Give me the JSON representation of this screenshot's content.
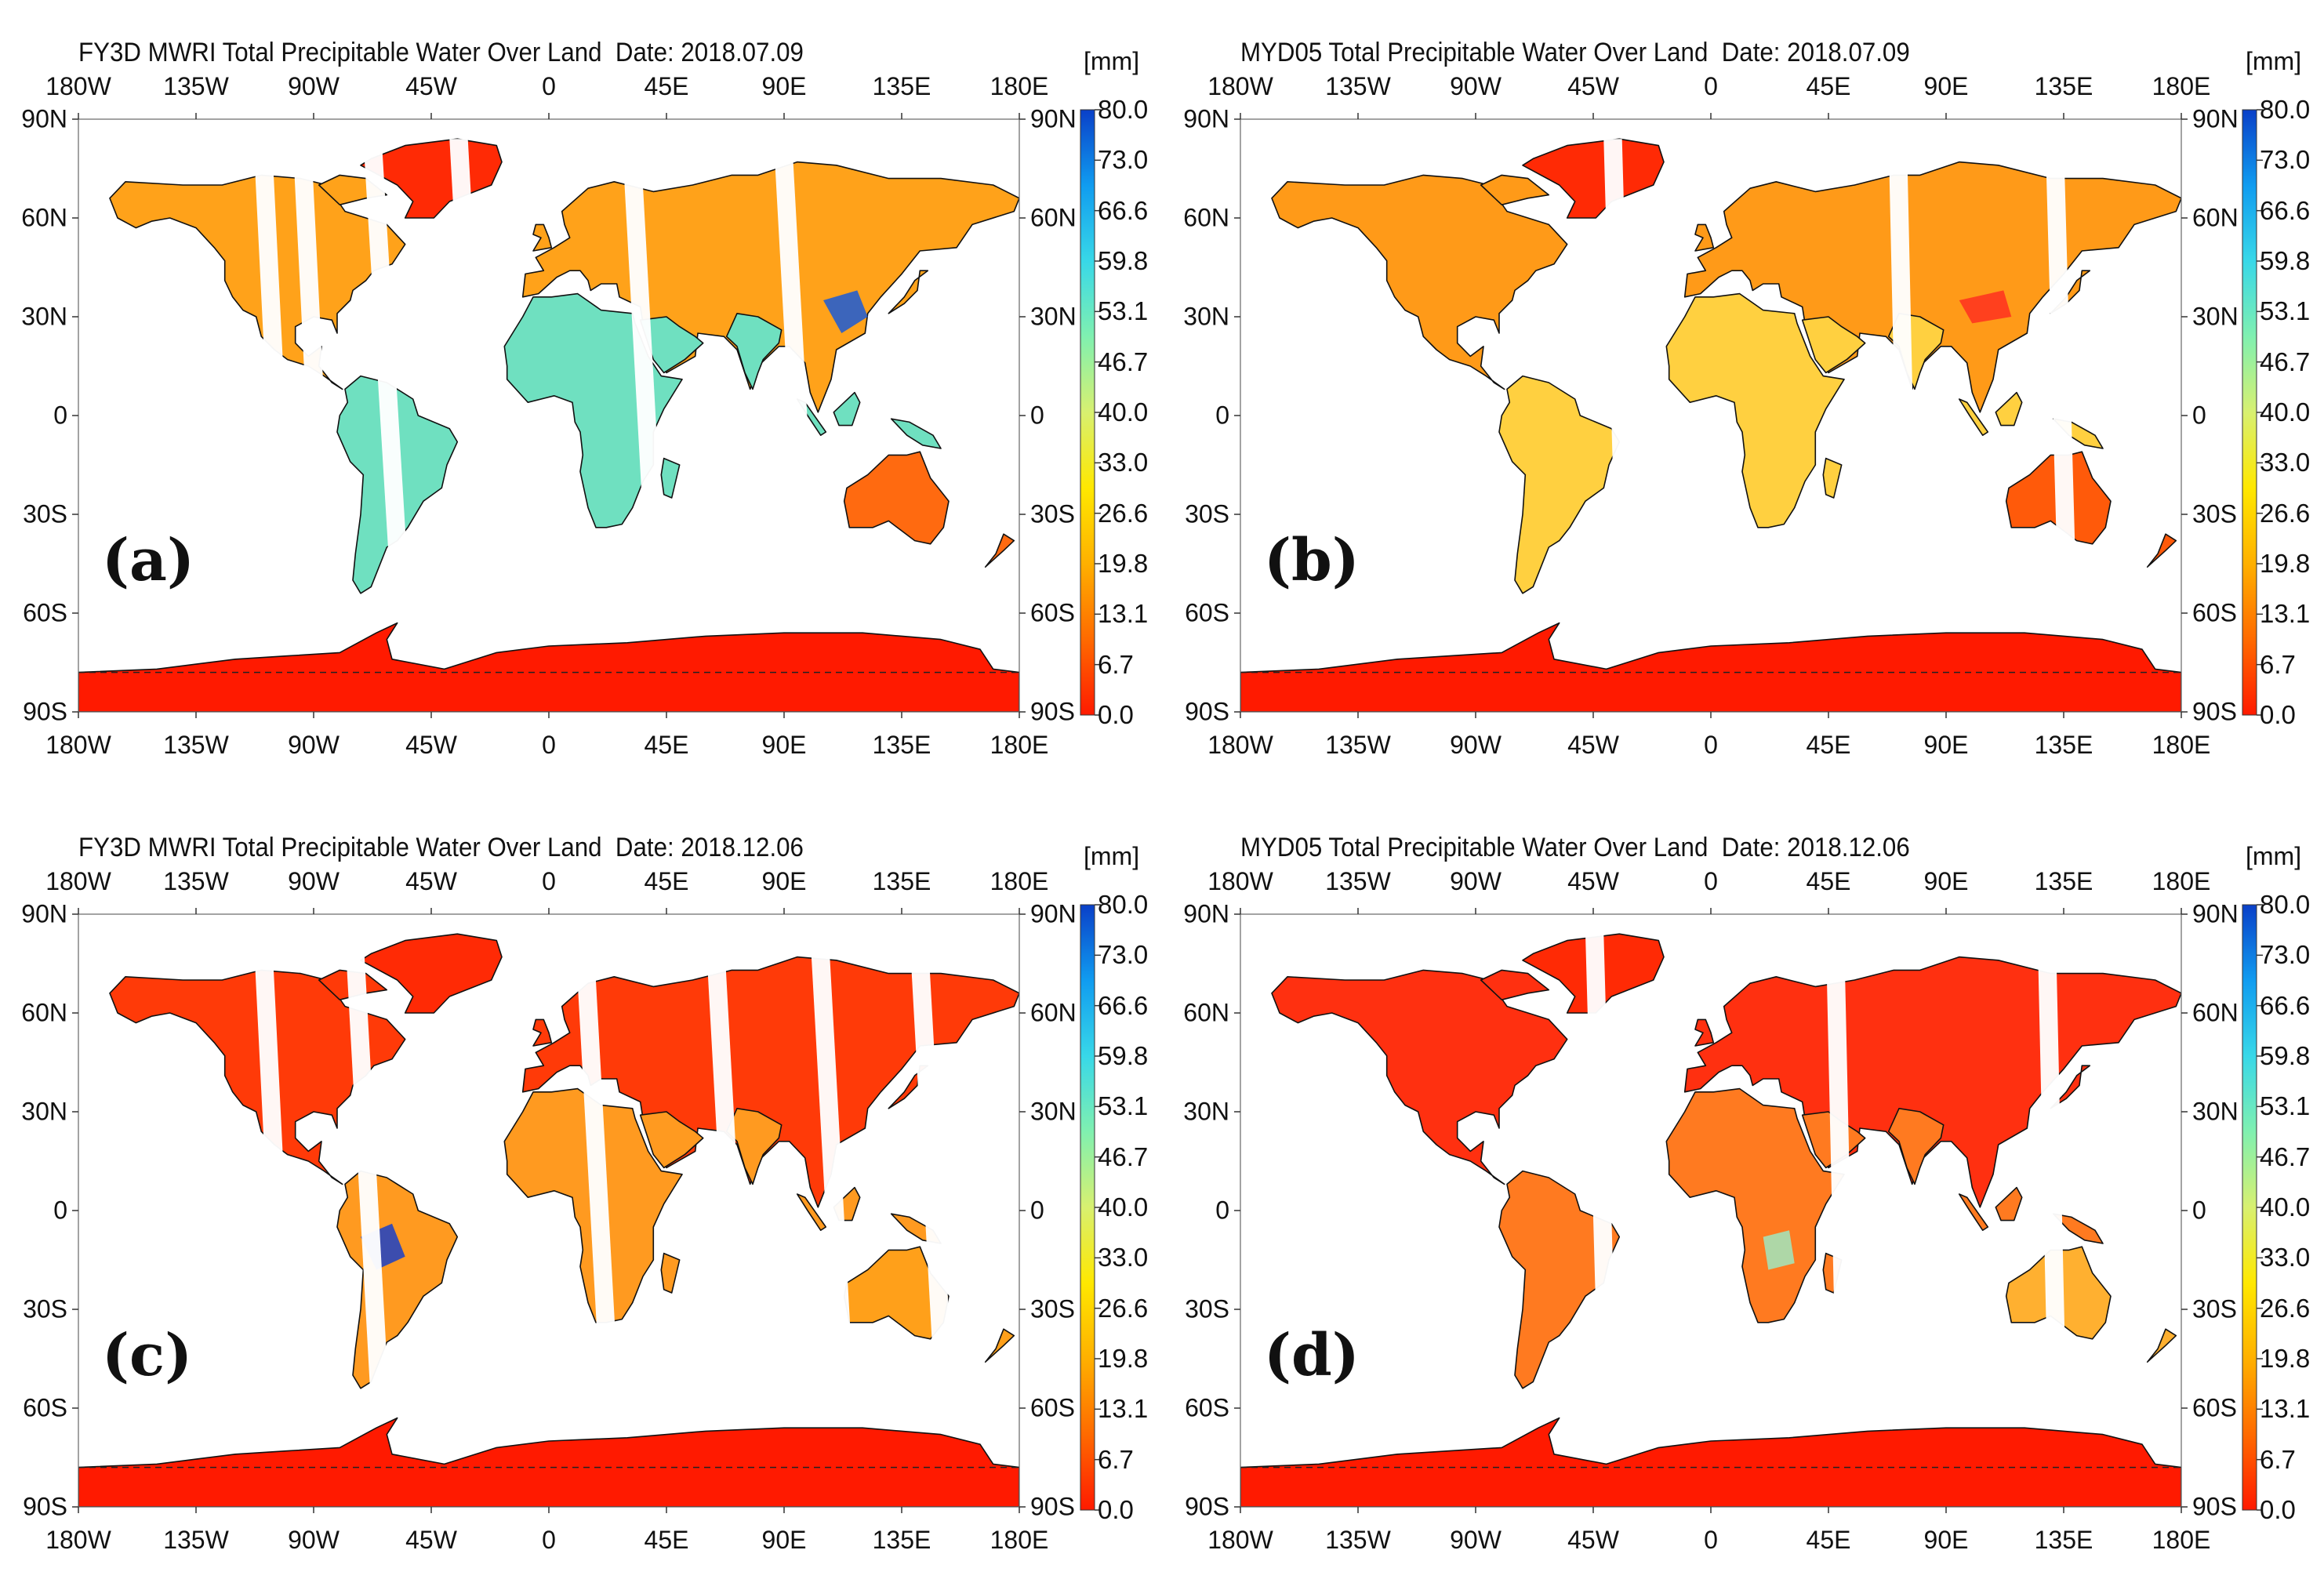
{
  "colors": {
    "colorbar_stops": [
      "#ff1a00",
      "#ff6a00",
      "#ffb000",
      "#ffe800",
      "#d8f070",
      "#80f0b0",
      "#38d8e8",
      "#109cf0",
      "#0a40c8"
    ],
    "coastline": "#111111",
    "land_edge": "#d0d0d0"
  },
  "colorbar": {
    "unit": "[mm]",
    "labels": [
      "80.0",
      "73.0",
      "66.6",
      "59.8",
      "53.1",
      "46.7",
      "40.0",
      "33.0",
      "26.6",
      "19.8",
      "13.1",
      "6.7",
      "0.0"
    ]
  },
  "axes": {
    "lon_labels": [
      "180W",
      "135W",
      "90W",
      "45W",
      "0",
      "45E",
      "90E",
      "135E",
      "180E"
    ],
    "lat_labels": [
      "90N",
      "60N",
      "30N",
      "0",
      "30S",
      "60S",
      "90S"
    ]
  },
  "panels": [
    {
      "id": "a",
      "letter": "(a)",
      "title": "FY3D MWRI Total Precipitable Water Over Land  Date: 2018.07.09",
      "product": "FY3D MWRI",
      "date": "2018.07.09",
      "palette": {
        "north": "#ffa21a",
        "tropics": "#6fe0c0",
        "south": "#ff6a10",
        "antarctica": "#ff1a00",
        "greenland": "#ff2a05",
        "highlight": "#1a5ad8"
      }
    },
    {
      "id": "b",
      "letter": "(b)",
      "title": "MYD05 Total Precipitable Water Over Land  Date: 2018.07.09",
      "product": "MYD05",
      "date": "2018.07.09",
      "palette": {
        "north": "#ff9a18",
        "tropics": "#ffd040",
        "south": "#ff5a0a",
        "antarctica": "#ff1a00",
        "greenland": "#ff2a05",
        "highlight": "#ff3020"
      }
    },
    {
      "id": "c",
      "letter": "(c)",
      "title": "FY3D MWRI Total Precipitable Water Over Land  Date: 2018.12.06",
      "product": "FY3D MWRI",
      "date": "2018.12.06",
      "palette": {
        "north": "#ff3a08",
        "tropics": "#ff9a20",
        "south": "#ffa01a",
        "antarctica": "#ff1a00",
        "greenland": "#ff2a05",
        "highlight": "#1a40c8"
      }
    },
    {
      "id": "d",
      "letter": "(d)",
      "title": "MYD05 Total Precipitable Water Over Land  Date: 2018.12.06",
      "product": "MYD05",
      "date": "2018.12.06",
      "palette": {
        "north": "#ff3010",
        "tropics": "#ff7a20",
        "south": "#ffb030",
        "antarctica": "#ff1a00",
        "greenland": "#ff2a05",
        "highlight": "#a0e8c0"
      }
    }
  ]
}
